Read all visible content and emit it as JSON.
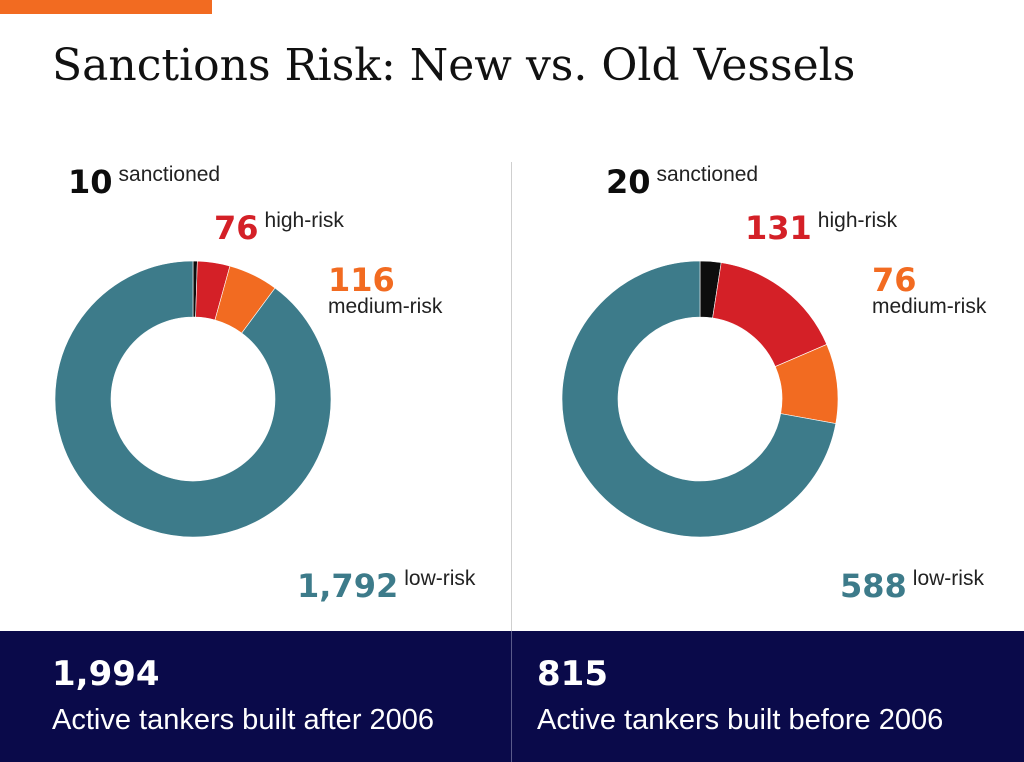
{
  "title": "Sanctions Risk: New vs. Old Vessels",
  "colors": {
    "accent": "#f26b21",
    "sanctioned": "#0d0d0d",
    "high_risk": "#d42027",
    "medium_risk": "#f26b21",
    "low_risk": "#3d7b8a",
    "footer_bg": "#0a0a4a"
  },
  "chart_data": [
    {
      "type": "pie",
      "donut": true,
      "total": "1,994",
      "caption": "Active tankers built after 2006",
      "series": [
        {
          "name": "sanctioned",
          "value": 10,
          "display": "10"
        },
        {
          "name": "high-risk",
          "value": 76,
          "display": "76"
        },
        {
          "name": "medium-risk",
          "value": 116,
          "display": "116"
        },
        {
          "name": "low-risk",
          "value": 1792,
          "display": "1,792"
        }
      ]
    },
    {
      "type": "pie",
      "donut": true,
      "total": "815",
      "caption": "Active tankers built before 2006",
      "series": [
        {
          "name": "sanctioned",
          "value": 20,
          "display": "20"
        },
        {
          "name": "high-risk",
          "value": 131,
          "display": "131"
        },
        {
          "name": "medium-risk",
          "value": 76,
          "display": "76"
        },
        {
          "name": "low-risk",
          "value": 588,
          "display": "588"
        }
      ]
    }
  ]
}
